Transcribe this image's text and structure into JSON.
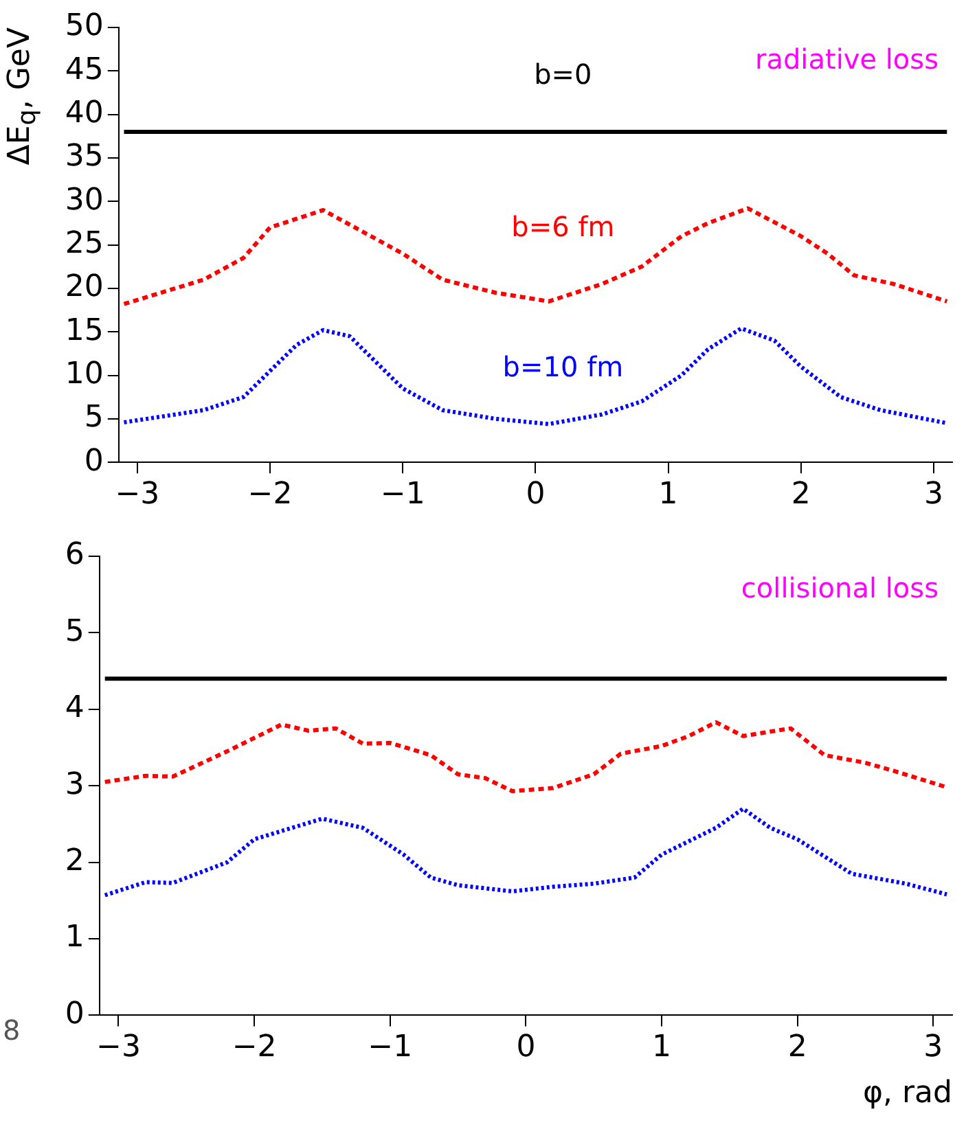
{
  "chart_data": [
    {
      "type": "line",
      "ylabel": "ΔE$_{q}$, GeV",
      "annotations": [
        "radiative loss"
      ],
      "xlim": [
        -3.14,
        3.14
      ],
      "xticks": [
        -3,
        -2,
        -1,
        0,
        1,
        2,
        3
      ],
      "ylim": [
        0,
        50
      ],
      "yticks": [
        0,
        5,
        10,
        15,
        20,
        25,
        30,
        35,
        40,
        45,
        50
      ],
      "grid": false,
      "legend": false,
      "marker": "none",
      "series": [
        {
          "name": "b=0",
          "color": "#000000",
          "line_style": "solid",
          "x": [
            -3.1,
            3.1
          ],
          "values": [
            38,
            38
          ]
        },
        {
          "name": "b=6 fm",
          "color": "#ff0000",
          "line_style": "dashed",
          "x": [
            -3.1,
            -2.5,
            -2.2,
            -2,
            -1.6,
            -1.3,
            -1,
            -0.7,
            -0.3,
            0.1,
            0.5,
            0.8,
            1.1,
            1.3,
            1.6,
            2,
            2.2,
            2.4,
            2.7,
            3.1
          ],
          "values": [
            18.2,
            21,
            23.5,
            27,
            29,
            26.5,
            24,
            21,
            19.5,
            18.5,
            20.5,
            22.5,
            26,
            27.5,
            29.2,
            26,
            24,
            21.5,
            20.5,
            18.5
          ]
        },
        {
          "name": "b=10 fm",
          "color": "#0000ff",
          "line_style": "dotted",
          "x": [
            -3.1,
            -2.5,
            -2.2,
            -2,
            -1.8,
            -1.6,
            -1.4,
            -1.2,
            -1,
            -0.7,
            -0.3,
            0.1,
            0.5,
            0.8,
            1.1,
            1.3,
            1.55,
            1.8,
            2,
            2.3,
            2.6,
            3.1
          ],
          "values": [
            4.6,
            6,
            7.5,
            10.5,
            13.5,
            15.2,
            14.5,
            11.5,
            8.5,
            6,
            5,
            4.4,
            5.5,
            7,
            10,
            13,
            15.4,
            14,
            11,
            7.5,
            6,
            4.5
          ]
        }
      ]
    },
    {
      "type": "line",
      "xlabel": "φ, rad",
      "annotations": [
        "collisional loss",
        "8"
      ],
      "xlim": [
        -3.14,
        3.14
      ],
      "xticks": [
        -3,
        -2,
        -1,
        0,
        1,
        2,
        3
      ],
      "ylim": [
        0,
        6
      ],
      "yticks": [
        0,
        1,
        2,
        3,
        4,
        5,
        6
      ],
      "grid": false,
      "legend": false,
      "marker": "none",
      "series": [
        {
          "color": "#000000",
          "line_style": "solid",
          "x": [
            -3.1,
            3.1
          ],
          "values": [
            4.4,
            4.4
          ]
        },
        {
          "color": "#ff0000",
          "line_style": "dashed",
          "x": [
            -3.1,
            -2.8,
            -2.6,
            -2.2,
            -1.8,
            -1.6,
            -1.4,
            -1.2,
            -1,
            -0.7,
            -0.5,
            -0.3,
            -0.1,
            0.2,
            0.5,
            0.7,
            1,
            1.2,
            1.4,
            1.6,
            1.95,
            2.2,
            2.5,
            2.7,
            3.1
          ],
          "values": [
            3.05,
            3.13,
            3.12,
            3.45,
            3.8,
            3.72,
            3.75,
            3.55,
            3.56,
            3.4,
            3.15,
            3.1,
            2.93,
            2.97,
            3.15,
            3.42,
            3.52,
            3.65,
            3.83,
            3.65,
            3.75,
            3.4,
            3.3,
            3.2,
            2.98
          ]
        },
        {
          "color": "#0000ff",
          "line_style": "dotted",
          "x": [
            -3.1,
            -2.8,
            -2.6,
            -2.2,
            -2,
            -1.5,
            -1.2,
            -0.9,
            -0.7,
            -0.5,
            -0.1,
            0.2,
            0.5,
            0.8,
            1,
            1.4,
            1.6,
            1.8,
            2,
            2.4,
            2.8,
            3.1
          ],
          "values": [
            1.57,
            1.74,
            1.73,
            2,
            2.3,
            2.57,
            2.45,
            2.1,
            1.8,
            1.7,
            1.62,
            1.68,
            1.72,
            1.8,
            2.1,
            2.45,
            2.7,
            2.45,
            2.3,
            1.85,
            1.72,
            1.58
          ]
        }
      ]
    }
  ]
}
